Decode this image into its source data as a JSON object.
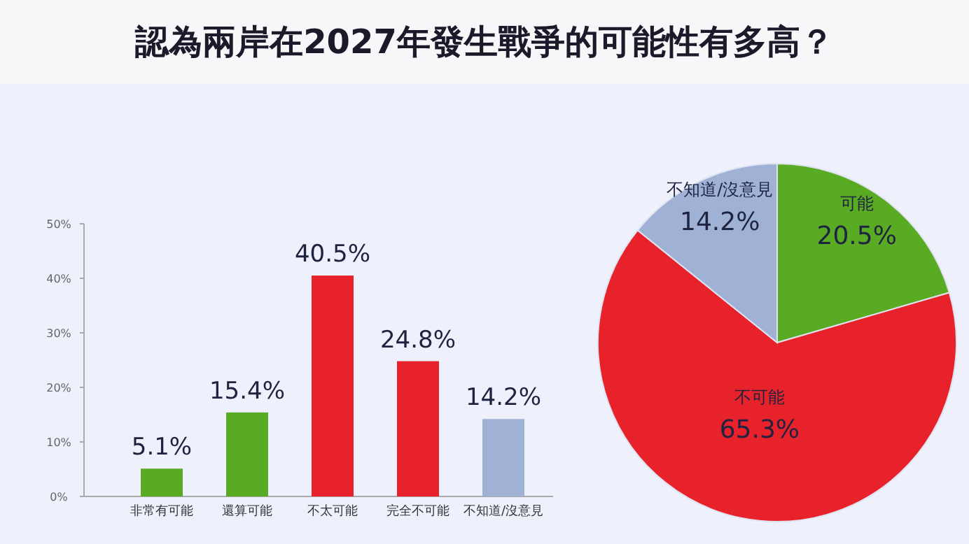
{
  "chart_data": [
    {
      "type": "bar",
      "title": "認為兩岸在2027年發生戰爭的可能性有多高？",
      "categories": [
        "非常有可能",
        "還算可能",
        "不太可能",
        "完全不可能",
        "不知道/沒意見"
      ],
      "values": [
        5.1,
        15.4,
        40.5,
        24.8,
        14.2
      ],
      "colors": [
        "#5aab24",
        "#5aab24",
        "#e8222a",
        "#e8222a",
        "#9fb2d6"
      ],
      "value_labels": [
        "5.1%",
        "15.4%",
        "40.5%",
        "24.8%",
        "14.2%"
      ],
      "ylim": [
        0,
        50
      ],
      "yticks": [
        {
          "value": 0,
          "label": "0%"
        },
        {
          "value": 10,
          "label": "10%"
        },
        {
          "value": 20,
          "label": "20%"
        },
        {
          "value": 30,
          "label": "30%"
        },
        {
          "value": 40,
          "label": "40%"
        },
        {
          "value": 50,
          "label": "50%"
        }
      ],
      "grid": false
    },
    {
      "type": "pie",
      "categories": [
        "可能",
        "不可能",
        "不知道/沒意見"
      ],
      "values": [
        20.5,
        65.3,
        14.2
      ],
      "colors": [
        "#5aab24",
        "#e8222a",
        "#9fb2d6"
      ],
      "value_labels": [
        "20.5%",
        "65.3%",
        "14.2%"
      ]
    }
  ]
}
